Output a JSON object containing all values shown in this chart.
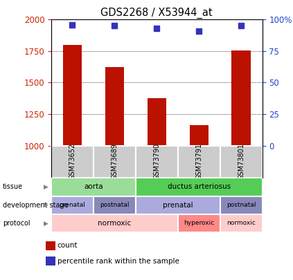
{
  "title": "GDS2268 / X53944_at",
  "samples": [
    "GSM73652",
    "GSM73689",
    "GSM73790",
    "GSM73791",
    "GSM73801"
  ],
  "counts": [
    1800,
    1625,
    1375,
    1165,
    1755
  ],
  "percentiles": [
    96,
    95,
    93,
    91,
    95
  ],
  "percentile_scale": [
    0,
    25,
    50,
    75,
    100
  ],
  "count_scale_min": 1000,
  "count_scale_max": 2000,
  "count_ticks": [
    1000,
    1250,
    1500,
    1750,
    2000
  ],
  "tissue_data": [
    {
      "label": "aorta",
      "start": 0,
      "end": 2,
      "color": "#99DD99"
    },
    {
      "label": "ductus arteriosus",
      "start": 2,
      "end": 5,
      "color": "#55CC55"
    }
  ],
  "dev_stage_data": [
    {
      "label": "prenatal",
      "start": 0,
      "end": 1,
      "color": "#AAAADD"
    },
    {
      "label": "postnatal",
      "start": 1,
      "end": 2,
      "color": "#8888BB"
    },
    {
      "label": "prenatal",
      "start": 2,
      "end": 4,
      "color": "#AAAADD"
    },
    {
      "label": "postnatal",
      "start": 4,
      "end": 5,
      "color": "#8888BB"
    }
  ],
  "protocol_data": [
    {
      "label": "normoxic",
      "start": 0,
      "end": 3,
      "color": "#FFCCCC"
    },
    {
      "label": "hyperoxic",
      "start": 3,
      "end": 4,
      "color": "#FF8888"
    },
    {
      "label": "normoxic",
      "start": 4,
      "end": 5,
      "color": "#FFCCCC"
    }
  ],
  "bar_color": "#BB1100",
  "dot_color": "#3333BB",
  "sample_bg_color": "#CCCCCC",
  "left_label_color": "#CC2200",
  "right_label_color": "#2244CC",
  "legend_count_color": "#BB1100",
  "legend_pct_color": "#3333BB"
}
